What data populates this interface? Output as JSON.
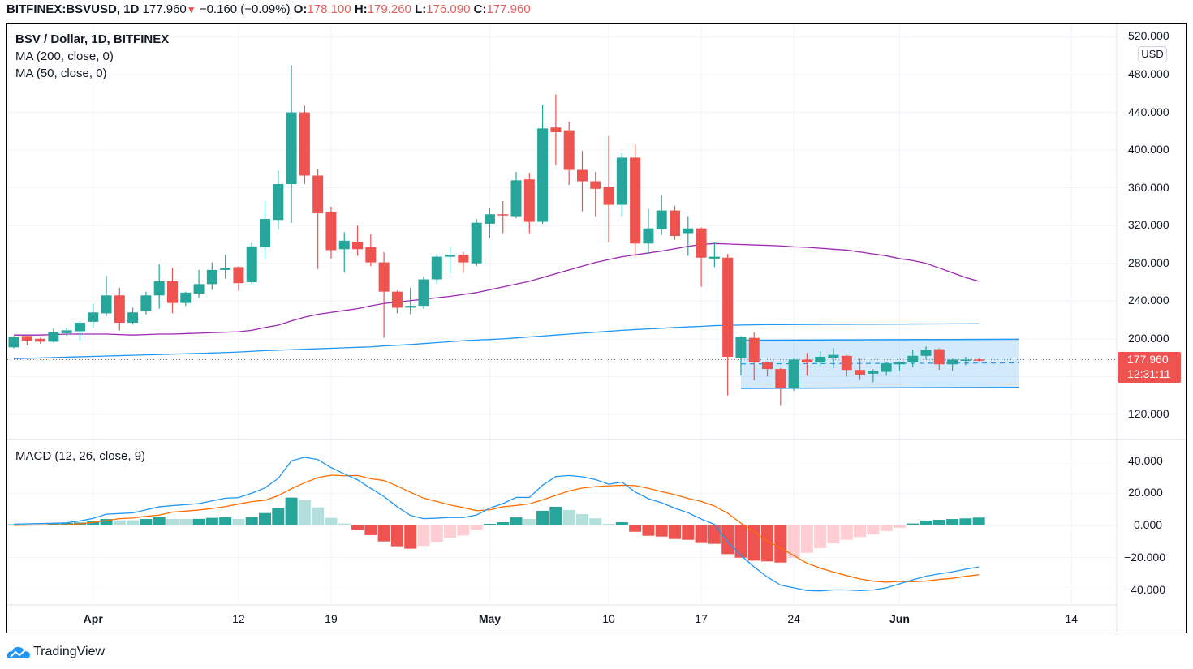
{
  "header": {
    "symbol": "BITFINEX:BSVUSD, 1D",
    "last": "177.960",
    "direction_icon": "triangle-down-icon",
    "change": "−0.160 (−0.09%)",
    "o_label": "O:",
    "o": "178.100",
    "h_label": "H:",
    "h": "179.260",
    "l_label": "L:",
    "l": "176.090",
    "c_label": "C:",
    "c": "177.960"
  },
  "legend": {
    "title": "BSV / Dollar, 1D, BITFINEX",
    "ma1": "MA (200, close, 0)",
    "ma2": "MA (50, close, 0)",
    "macd": "MACD (12, 26, close, 9)"
  },
  "price_axis": {
    "currency": "USD",
    "ticks": [
      "520.000",
      "480.000",
      "440.000",
      "400.000",
      "360.000",
      "320.000",
      "280.000",
      "240.000",
      "200.000",
      "120.000"
    ],
    "last_price": "177.960",
    "countdown": "12:31:11"
  },
  "macd_axis": {
    "ticks": [
      "40.000",
      "20.000",
      "0.000",
      "−20.000",
      "−40.000"
    ]
  },
  "time_axis": {
    "ticks": [
      "Apr",
      "12",
      "19",
      "May",
      "10",
      "17",
      "24",
      "Jun",
      "14"
    ]
  },
  "branding": {
    "logo": "TradingView"
  },
  "colors": {
    "up": "#26a69a",
    "down": "#ef5350",
    "up_light": "#b2dfdb",
    "down_light": "#ffcdd2",
    "ma200": "#2196f3",
    "ma50": "#9c27b0",
    "macd": "#2196f3",
    "signal": "#ff6d00",
    "channel": "#2196f3"
  },
  "chart_data": [
    {
      "type": "candlestick",
      "ylim": [
        110,
        525
      ],
      "grid": true,
      "last_price": 177.96,
      "candles": [
        [
          "Mar 26",
          191,
          203,
          190,
          202
        ],
        [
          "Mar 27",
          203,
          204,
          193,
          198
        ],
        [
          "Mar 28",
          200,
          201,
          195,
          197
        ],
        [
          "Mar 29",
          197,
          211,
          196,
          207
        ],
        [
          "Mar 30",
          206,
          212,
          203,
          209
        ],
        [
          "Mar 31",
          208,
          219,
          198,
          217
        ],
        [
          "Apr 1",
          218,
          237,
          212,
          228
        ],
        [
          "Apr 2",
          227,
          267,
          224,
          246
        ],
        [
          "Apr 3",
          246,
          254,
          209,
          217
        ],
        [
          "Apr 4",
          217,
          233,
          215,
          228
        ],
        [
          "Apr 5",
          229,
          250,
          226,
          246
        ],
        [
          "Apr 6",
          246,
          279,
          232,
          261
        ],
        [
          "Apr 7",
          261,
          275,
          227,
          238
        ],
        [
          "Apr 8",
          238,
          250,
          235,
          249
        ],
        [
          "Apr 9",
          248,
          273,
          243,
          258
        ],
        [
          "Apr 10",
          258,
          281,
          252,
          273
        ],
        [
          "Apr 11",
          273,
          289,
          264,
          275
        ],
        [
          "Apr 12",
          276,
          277,
          251,
          259
        ],
        [
          "Apr 13",
          260,
          302,
          258,
          298
        ],
        [
          "Apr 14",
          297,
          346,
          284,
          327
        ],
        [
          "Apr 15",
          326,
          378,
          316,
          364
        ],
        [
          "Apr 16",
          364,
          490,
          323,
          440
        ],
        [
          "Apr 17",
          440,
          447,
          364,
          373
        ],
        [
          "Apr 18",
          373,
          380,
          274,
          333
        ],
        [
          "Apr 19",
          334,
          340,
          285,
          294
        ],
        [
          "Apr 20",
          295,
          313,
          270,
          304
        ],
        [
          "Apr 21",
          303,
          320,
          288,
          295
        ],
        [
          "Apr 22",
          297,
          311,
          277,
          281
        ],
        [
          "Apr 23",
          281,
          292,
          201,
          250
        ],
        [
          "Apr 24",
          250,
          251,
          227,
          233
        ],
        [
          "Apr 25",
          233,
          254,
          226,
          235
        ],
        [
          "Apr 26",
          235,
          266,
          232,
          263
        ],
        [
          "Apr 27",
          263,
          290,
          258,
          287
        ],
        [
          "Apr 28",
          287,
          298,
          269,
          289
        ],
        [
          "Apr 29",
          289,
          292,
          270,
          281
        ],
        [
          "Apr 30",
          280,
          327,
          277,
          323
        ],
        [
          "May 1",
          322,
          339,
          307,
          332
        ],
        [
          "May 2",
          332,
          346,
          312,
          331
        ],
        [
          "May 3",
          330,
          377,
          328,
          368
        ],
        [
          "May 4",
          369,
          376,
          312,
          324
        ],
        [
          "May 5",
          324,
          448,
          322,
          423
        ],
        [
          "May 6",
          424,
          459,
          384,
          419
        ],
        [
          "May 7",
          421,
          430,
          363,
          379
        ],
        [
          "May 8",
          379,
          399,
          335,
          367
        ],
        [
          "May 9",
          367,
          377,
          330,
          359
        ],
        [
          "May 10",
          361,
          415,
          302,
          342
        ],
        [
          "May 11",
          342,
          397,
          330,
          392
        ],
        [
          "May 12",
          392,
          406,
          287,
          301
        ],
        [
          "May 13",
          301,
          338,
          290,
          317
        ],
        [
          "May 14",
          316,
          352,
          310,
          336
        ],
        [
          "May 15",
          336,
          341,
          305,
          309
        ],
        [
          "May 16",
          312,
          330,
          288,
          317
        ],
        [
          "May 17",
          317,
          318,
          255,
          286
        ],
        [
          "May 18",
          285,
          302,
          276,
          287
        ],
        [
          "May 19",
          286,
          290,
          140,
          181
        ],
        [
          "May 20",
          180,
          203,
          161,
          202
        ],
        [
          "May 21",
          201,
          207,
          156,
          175
        ],
        [
          "May 22",
          175,
          176,
          160,
          168
        ],
        [
          "May 23",
          168,
          169,
          129,
          148
        ],
        [
          "May 24",
          148,
          179,
          145,
          178
        ],
        [
          "May 25",
          178,
          185,
          161,
          175
        ],
        [
          "May 26",
          175,
          187,
          171,
          181
        ],
        [
          "May 27",
          180,
          190,
          169,
          183
        ],
        [
          "May 28",
          182,
          183,
          160,
          167
        ],
        [
          "May 29",
          167,
          179,
          157,
          162
        ],
        [
          "May 30",
          163,
          168,
          154,
          166
        ],
        [
          "May 31",
          165,
          175,
          161,
          174
        ],
        [
          "Jun 1",
          173,
          176,
          166,
          175
        ],
        [
          "Jun 2",
          175,
          188,
          170,
          182
        ],
        [
          "Jun 3",
          182,
          192,
          178,
          188
        ],
        [
          "Jun 4",
          189,
          190,
          167,
          173
        ],
        [
          "Jun 5",
          173,
          179,
          166,
          178
        ],
        [
          "Jun 6",
          177,
          181,
          172,
          178
        ],
        [
          "Jun 7",
          178.1,
          179.26,
          176.09,
          177.96
        ]
      ],
      "series": [
        {
          "name": "MA (200, close, 0)",
          "values": [
            179,
            179.4,
            179.8,
            180.2,
            180.6,
            181,
            181.4,
            181.8,
            182.2,
            182.6,
            183,
            183.4,
            183.8,
            184.2,
            184.6,
            185,
            185.5,
            186,
            186.8,
            187.5,
            188,
            188.5,
            189,
            189.5,
            190,
            190.5,
            191,
            191.5,
            192.5,
            193.2,
            194,
            195,
            196,
            197,
            198,
            198.7,
            199.3,
            200,
            201,
            202,
            203,
            204,
            205,
            206,
            207,
            208,
            209,
            209.8,
            210.5,
            211.2,
            212,
            212.6,
            213.2,
            214,
            214.3,
            214.6,
            214.8,
            215,
            215,
            215.1,
            215.2,
            215.3,
            215.4,
            215.4,
            215.5,
            215.5,
            215.6,
            215.6,
            215.7,
            215.8,
            215.8,
            215.9,
            215.9,
            216
          ]
        },
        {
          "name": "MA (50, close, 0)",
          "values": [
            204,
            204,
            204,
            204.5,
            205,
            205,
            205,
            205,
            204.5,
            204,
            204.5,
            205,
            205,
            205.5,
            206,
            206.5,
            207,
            207.5,
            209,
            212,
            214.5,
            219,
            223,
            226,
            228,
            230,
            232,
            235,
            237.5,
            239,
            240.5,
            242,
            243.5,
            245,
            247,
            249,
            252,
            255,
            258,
            261,
            265,
            269,
            273,
            277,
            281,
            284,
            287,
            289,
            291,
            293,
            295.5,
            298,
            300,
            301,
            300.5,
            300,
            299.5,
            299,
            298.5,
            297.5,
            297,
            296,
            295,
            294,
            292,
            290,
            288,
            285,
            283,
            280,
            275,
            270,
            265,
            261
          ]
        }
      ],
      "channel": {
        "start": "May 20",
        "end": "Jun 10",
        "upper": [
          198.5,
          199.5
        ],
        "lower": [
          147.5,
          148.5
        ],
        "middle": [
          173.5,
          174.5
        ]
      }
    },
    {
      "type": "macd",
      "title": "MACD (12, 26, close, 9)",
      "ylim": [
        -50,
        50
      ],
      "macd": [
        0.8,
        1.0,
        1.2,
        1.4,
        1.6,
        2.8,
        4.4,
        7.0,
        7.4,
        7.8,
        9.7,
        11.6,
        12.3,
        12.9,
        13.6,
        15.2,
        16.9,
        17.3,
        20.0,
        23.3,
        29.2,
        40.1,
        42.3,
        40.9,
        35.9,
        32.0,
        28.3,
        23.0,
        18.0,
        11.6,
        6.2,
        4.2,
        4.5,
        5.0,
        4.9,
        6.5,
        10.7,
        13.6,
        17.4,
        17.4,
        25.0,
        30.3,
        31.0,
        30.2,
        28.5,
        25.6,
        26.9,
        20.8,
        16.6,
        14.1,
        10.7,
        7.9,
        4.0,
        0.7,
        -10.2,
        -18.6,
        -25.7,
        -32.0,
        -37.0,
        -38.7,
        -40.4,
        -40.6,
        -40.0,
        -40.0,
        -40.4,
        -40.0,
        -38.7,
        -36.2,
        -33.7,
        -31.5,
        -30.0,
        -28.8,
        -27.1,
        -25.7
      ],
      "signal": [
        0.1,
        0.2,
        0.3,
        0.4,
        0.5,
        1.0,
        1.9,
        3.0,
        4.2,
        4.6,
        5.7,
        6.4,
        8.3,
        8.9,
        9.6,
        10.5,
        11.7,
        13.3,
        14.8,
        15.6,
        18.5,
        22.8,
        26.5,
        29.7,
        31.2,
        30.8,
        31.0,
        29.0,
        27.9,
        24.5,
        20.6,
        16.9,
        14.9,
        12.7,
        11.1,
        9.2,
        9.7,
        11.6,
        12.4,
        13.4,
        15.9,
        18.7,
        21.4,
        23.2,
        24.1,
        24.6,
        24.9,
        24.7,
        23.0,
        21.0,
        19.1,
        16.8,
        14.9,
        12.1,
        7.6,
        1.4,
        -3.9,
        -9.7,
        -14.0,
        -18.7,
        -23.4,
        -26.5,
        -28.9,
        -31.1,
        -33.2,
        -34.5,
        -35.2,
        -34.7,
        -34.9,
        -34.5,
        -33.5,
        -32.8,
        -31.5,
        -30.6
      ],
      "histogram": [
        0.7,
        0.7,
        0.7,
        1.3,
        1.5,
        1.8,
        2.5,
        4.0,
        3.2,
        3.2,
        4.0,
        5.2,
        4.0,
        4.0,
        4.1,
        4.7,
        5.2,
        4.0,
        5.2,
        7.7,
        10.7,
        17.3,
        15.8,
        11.2,
        4.7,
        1.2,
        -2.7,
        -6.0,
        -9.9,
        -12.9,
        -14.4,
        -12.7,
        -10.4,
        -7.7,
        -6.2,
        -2.7,
        1.0,
        2.0,
        5.0,
        4.0,
        9.1,
        11.6,
        9.6,
        7.0,
        4.4,
        1.0,
        2.0,
        -3.9,
        -6.4,
        -6.9,
        -8.4,
        -8.9,
        -10.9,
        -11.4,
        -17.8,
        -20.0,
        -21.8,
        -22.3,
        -23.0,
        -20.0,
        -17.0,
        -14.1,
        -11.1,
        -8.9,
        -7.2,
        -5.5,
        -3.5,
        -1.5,
        1.2,
        3.0,
        3.5,
        4.0,
        4.4,
        4.9
      ]
    }
  ]
}
